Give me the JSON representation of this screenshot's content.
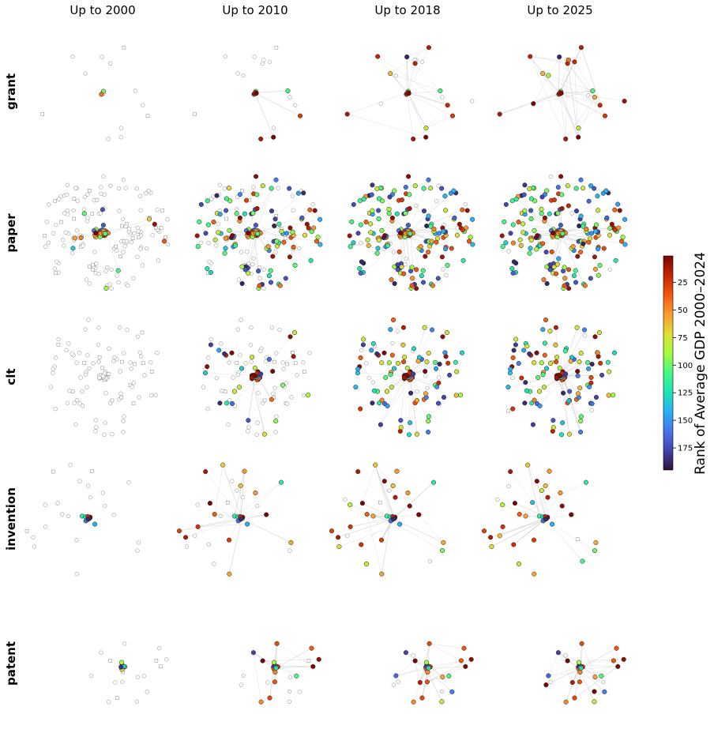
{
  "figure": {
    "columns": [
      "Up to 2000",
      "Up to 2010",
      "Up to 2018",
      "Up to 2025"
    ],
    "rows": [
      "grant",
      "paper",
      "clt",
      "invention",
      "patent"
    ]
  },
  "colorbar": {
    "label": "Rank of Average GDP 2000–2024",
    "ticks": [
      "25",
      "50",
      "75",
      "100",
      "125",
      "150",
      "175"
    ],
    "tick_values": [
      25,
      50,
      75,
      100,
      125,
      150,
      175
    ],
    "range": [
      1,
      195
    ],
    "colormap": "turbo_reversed",
    "colors": [
      "#7a0403",
      "#c42503",
      "#f0590e",
      "#fb9b30",
      "#e1dd37",
      "#a4fc3c",
      "#46f884",
      "#1ae4b6",
      "#2aaff6",
      "#4675ed",
      "#4145ab",
      "#30123b"
    ]
  },
  "panels": {
    "grant": {
      "counts": [
        20,
        24,
        27,
        28
      ],
      "colored": [
        2,
        12,
        20,
        26
      ],
      "layout": "sparse"
    },
    "paper": {
      "counts": [
        190,
        200,
        210,
        215
      ],
      "colored": [
        55,
        150,
        195,
        210
      ],
      "layout": "ring"
    },
    "clt": {
      "counts": [
        110,
        115,
        125,
        130
      ],
      "colored": [
        0,
        55,
        110,
        125
      ],
      "layout": "cloud"
    },
    "invention": {
      "counts": [
        40,
        45,
        48,
        50
      ],
      "colored": [
        18,
        33,
        42,
        46
      ],
      "layout": "hub"
    },
    "patent": {
      "counts": [
        30,
        32,
        34,
        35
      ],
      "colored": [
        9,
        24,
        30,
        32
      ],
      "layout": "compact"
    }
  }
}
